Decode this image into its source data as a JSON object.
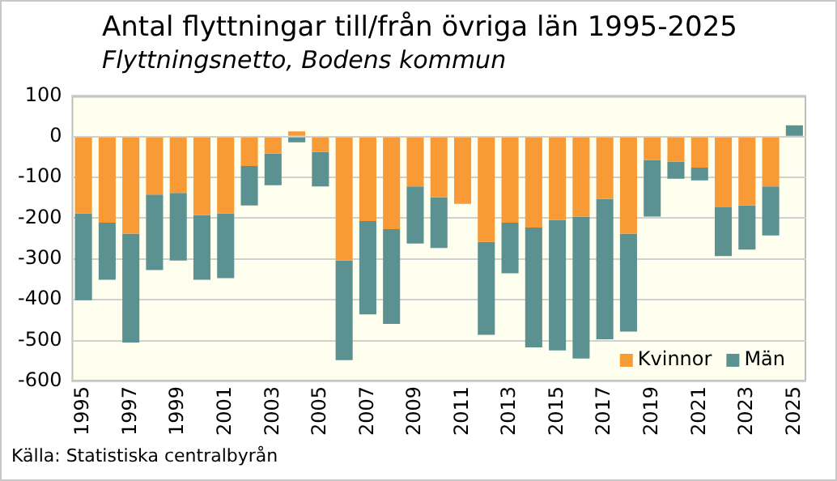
{
  "chart_data": {
    "type": "bar",
    "title": "Antal flyttningar till/från övriga län 1995-2025",
    "subtitle": "Flyttningsnetto, Bodens kommun",
    "categories": [
      "1995",
      null,
      "1997",
      null,
      "1999",
      null,
      "2001",
      null,
      "2003",
      null,
      "2005",
      null,
      "2007",
      null,
      "2009",
      null,
      "2011",
      null,
      "2013",
      null,
      "2015",
      null,
      "2017",
      null,
      "2019",
      null,
      "2021",
      null,
      "2023",
      null,
      "2025"
    ],
    "series": [
      {
        "name": "Kvinnor",
        "color": "#f89a36",
        "values": [
          -188,
          -211,
          -238,
          -142,
          -138,
          -192,
          -188,
          -72,
          -41,
          13,
          -37,
          -304,
          -207,
          -227,
          -122,
          -149,
          -165,
          -258,
          -211,
          -223,
          -204,
          -196,
          -153,
          -238,
          -57,
          -61,
          -76,
          -173,
          -169,
          -122,
          null
        ]
      },
      {
        "name": "Män",
        "color": "#5b9191",
        "values": [
          -213,
          -140,
          -267,
          -185,
          -166,
          -159,
          -159,
          -97,
          -78,
          -14,
          -85,
          -244,
          -229,
          -232,
          -140,
          -124,
          null,
          -228,
          -124,
          -294,
          -320,
          -348,
          -344,
          -240,
          -139,
          -42,
          -31,
          -120,
          -108,
          -120,
          28
        ]
      }
    ],
    "stacked": true,
    "ylim": [
      -600,
      100
    ],
    "yticks": [
      -600,
      -500,
      -400,
      -300,
      -200,
      -100,
      0,
      100
    ],
    "grid": "y",
    "legend": "bottom right",
    "annotations": [
      "Källa: Statistiska centralbyrån"
    ]
  }
}
